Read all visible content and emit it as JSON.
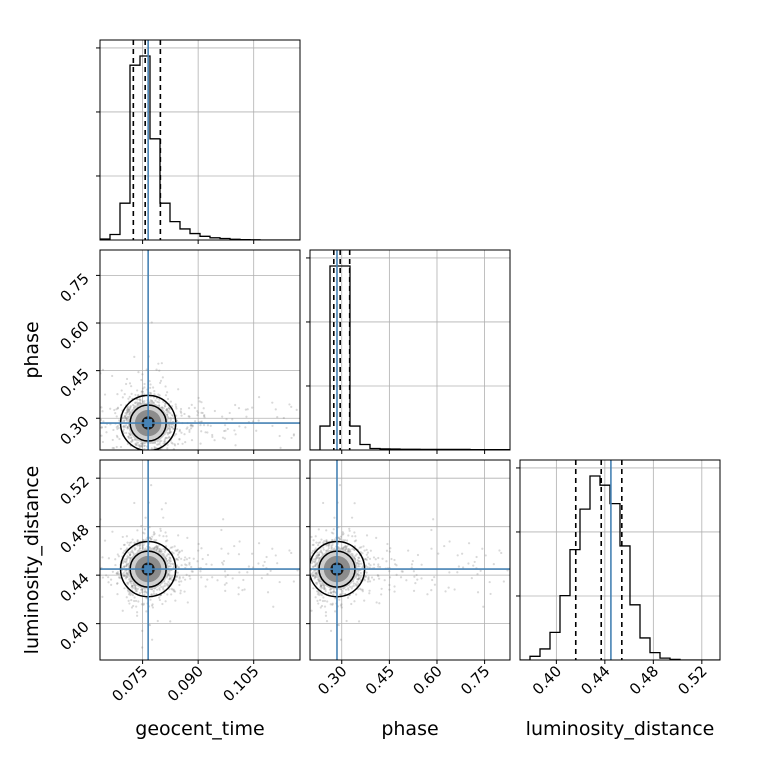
{
  "chart_data": {
    "type": "corner",
    "parameters": [
      "geocent_time",
      "phase",
      "luminosity_distance"
    ],
    "axis_labels": {
      "geocent_time": "geocent_time",
      "phase": "phase",
      "luminosity_distance": "luminosity_distance"
    },
    "ranges": {
      "geocent_time": [
        0.0635,
        0.1175
      ],
      "phase": [
        0.2,
        0.83
      ],
      "luminosity_distance": [
        0.37,
        0.535
      ]
    },
    "ticks": {
      "geocent_time": [
        0.075,
        0.09,
        0.105
      ],
      "phase": [
        0.3,
        0.45,
        0.6,
        0.75
      ],
      "luminosity_distance": [
        0.4,
        0.44,
        0.48,
        0.52
      ]
    },
    "tick_labels": {
      "geocent_time": [
        "0.075",
        "0.090",
        "0.105"
      ],
      "phase": [
        "0.30",
        "0.45",
        "0.60",
        "0.75"
      ],
      "luminosity_distance": [
        "0.40",
        "0.44",
        "0.48",
        "0.52"
      ]
    },
    "truths": {
      "geocent_time": 0.0765,
      "phase": 0.285,
      "luminosity_distance": 0.445
    },
    "quantiles": {
      "geocent_time": [
        0.0725,
        0.0757,
        0.0798
      ],
      "phase": [
        0.275,
        0.295,
        0.325
      ],
      "luminosity_distance": [
        0.416,
        0.437,
        0.454
      ]
    },
    "histograms": {
      "geocent_time": [
        0.005,
        0.03,
        0.2,
        0.95,
        1.0,
        0.55,
        0.2,
        0.1,
        0.06,
        0.035,
        0.02,
        0.012,
        0.008,
        0.004,
        0.002,
        0.001,
        0,
        0,
        0,
        0
      ],
      "phase": [
        0.0,
        0.13,
        1.0,
        1.0,
        0.13,
        0.03,
        0.008,
        0.006,
        0.005,
        0.004,
        0.004,
        0.003,
        0.003,
        0.003,
        0.003,
        0.003,
        0.002,
        0.002,
        0.002,
        0.002
      ],
      "luminosity_distance": [
        0.0,
        0.02,
        0.06,
        0.15,
        0.35,
        0.6,
        0.82,
        1.0,
        0.95,
        0.85,
        0.62,
        0.3,
        0.12,
        0.04,
        0.01,
        0.003,
        0,
        0,
        0,
        0
      ]
    },
    "grid": true,
    "truth_color": "#4682b4",
    "contour_color": "#000000",
    "sample_color": "#808080"
  }
}
